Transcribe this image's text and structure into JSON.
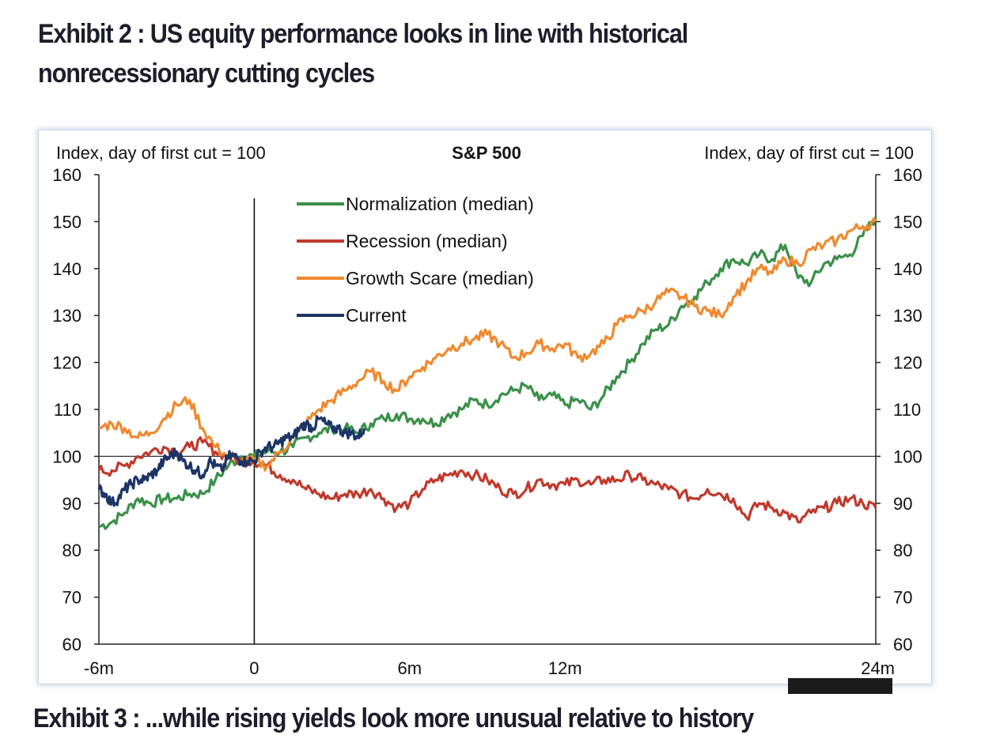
{
  "headings": {
    "exhibit2_line1": "Exhibit 2 : US equity performance looks in line with historical",
    "exhibit2_line2": "nonrecessionary cutting cycles",
    "exhibit3": "Exhibit 3 : ...while rising yields look more unusual relative to history"
  },
  "chart_data": {
    "type": "line",
    "title": "S&P 500",
    "ylabel_left": "Index, day of first cut = 100",
    "ylabel_right": "Index, day of first cut = 100",
    "xlabel": "",
    "x_unit": "months relative to first cut",
    "xlim": [
      -6,
      24
    ],
    "ylim": [
      60,
      160
    ],
    "x_ticks": [
      {
        "value": -6,
        "label": "-6m"
      },
      {
        "value": 0,
        "label": "0"
      },
      {
        "value": 6,
        "label": "6m"
      },
      {
        "value": 12,
        "label": "12m"
      },
      {
        "value": 24,
        "label": "24m"
      }
    ],
    "y_ticks": [
      60,
      70,
      80,
      90,
      100,
      110,
      120,
      130,
      140,
      150,
      160
    ],
    "reference_lines": {
      "horizontal_y": 100,
      "vertical_x": 0,
      "vertical_top_y": 155
    },
    "grid": false,
    "legend_position": "top-left inside plot",
    "series": [
      {
        "name": "Normalization (median)",
        "color": "#3a9048",
        "x": [
          -6,
          -5.5,
          -5,
          -4.5,
          -4,
          -3.5,
          -3,
          -2.5,
          -2,
          -1.5,
          -1,
          -0.5,
          0,
          0.5,
          1,
          1.5,
          2,
          2.5,
          3,
          3.5,
          4,
          4.5,
          5,
          5.5,
          6,
          6.5,
          7,
          7.5,
          8,
          8.5,
          9,
          9.5,
          10,
          10.5,
          11,
          11.5,
          12,
          12.5,
          13,
          13.5,
          14,
          14.5,
          15,
          15.5,
          16,
          16.5,
          17,
          17.5,
          18,
          18.5,
          19,
          19.5,
          20,
          20.5,
          21,
          21.5,
          22,
          22.5,
          23,
          23.5,
          24
        ],
        "y": [
          85,
          86,
          88,
          91,
          90,
          91,
          91,
          92,
          92,
          95,
          98,
          100,
          100,
          101,
          101,
          102,
          104,
          105,
          106,
          106,
          105,
          107,
          108,
          109,
          108,
          108,
          107,
          109,
          110,
          112,
          111,
          113,
          114,
          115,
          112,
          113,
          111,
          112,
          110,
          113,
          117,
          120,
          124,
          127,
          128,
          132,
          134,
          137,
          140,
          142,
          141,
          143,
          142,
          145,
          138,
          137,
          141,
          142,
          143,
          147,
          151
        ]
      },
      {
        "name": "Recession (median)",
        "color": "#c0392b",
        "x": [
          -6,
          -5.5,
          -5,
          -4.5,
          -4,
          -3.5,
          -3,
          -2.5,
          -2,
          -1.5,
          -1,
          -0.5,
          0,
          0.5,
          1,
          1.5,
          2,
          2.5,
          3,
          3.5,
          4,
          4.5,
          5,
          5.5,
          6,
          6.5,
          7,
          7.5,
          8,
          8.5,
          9,
          9.5,
          10,
          10.5,
          11,
          11.5,
          12,
          12.5,
          13,
          13.5,
          14,
          14.5,
          15,
          15.5,
          16,
          16.5,
          17,
          17.5,
          18,
          18.5,
          19,
          19.5,
          20,
          20.5,
          21,
          21.5,
          22,
          22.5,
          23,
          23.5,
          24
        ],
        "y": [
          97,
          97,
          98,
          100,
          101,
          102,
          101,
          102,
          103,
          101,
          100,
          99,
          99,
          98,
          96,
          95,
          93,
          92,
          91,
          92,
          92,
          93,
          91,
          89,
          90,
          93,
          95,
          96,
          97,
          96,
          95,
          93,
          92,
          93,
          95,
          94,
          94,
          95,
          94,
          95,
          95,
          96,
          95,
          94,
          93,
          92,
          91,
          93,
          92,
          91,
          87,
          90,
          89,
          88,
          86,
          88,
          89,
          90,
          91,
          90,
          89
        ]
      },
      {
        "name": "Growth Scare (median)",
        "color": "#f0892e",
        "x": [
          -6,
          -5.5,
          -5,
          -4.5,
          -4,
          -3.5,
          -3,
          -2.5,
          -2,
          -1.5,
          -1,
          -0.5,
          0,
          0.5,
          1,
          1.5,
          2,
          2.5,
          3,
          3.5,
          4,
          4.5,
          5,
          5.5,
          6,
          6.5,
          7,
          7.5,
          8,
          8.5,
          9,
          9.5,
          10,
          10.5,
          11,
          11.5,
          12,
          12.5,
          13,
          13.5,
          14,
          14.5,
          15,
          15.5,
          16,
          16.5,
          17,
          17.5,
          18,
          18.5,
          19,
          19.5,
          20,
          20.5,
          21,
          21.5,
          22,
          22.5,
          23,
          23.5,
          24
        ],
        "y": [
          106,
          107,
          106,
          104,
          105,
          108,
          111,
          112,
          106,
          102,
          100,
          99,
          99,
          98,
          101,
          104,
          107,
          110,
          112,
          114,
          116,
          118,
          116,
          114,
          117,
          119,
          121,
          123,
          124,
          125,
          126,
          124,
          121,
          122,
          124,
          123,
          124,
          121,
          122,
          124,
          128,
          130,
          131,
          133,
          135,
          134,
          132,
          131,
          130,
          134,
          137,
          140,
          139,
          142,
          141,
          144,
          145,
          146,
          148,
          149,
          150
        ]
      },
      {
        "name": "Current",
        "color": "#1c3466",
        "x": [
          -6,
          -5.75,
          -5.5,
          -5.25,
          -5,
          -4.75,
          -4.5,
          -4.25,
          -4,
          -3.75,
          -3.5,
          -3.25,
          -3,
          -2.75,
          -2.5,
          -2.25,
          -2,
          -1.75,
          -1.5,
          -1.25,
          -1,
          -0.75,
          -0.5,
          -0.25,
          0,
          0.25,
          0.5,
          0.75,
          1,
          1.25,
          1.5,
          1.75,
          2,
          2.25,
          2.5,
          2.75,
          3,
          3.25,
          3.5,
          3.75,
          4,
          4.25
        ],
        "y": [
          93,
          92,
          90,
          91,
          93,
          94,
          95,
          95,
          96,
          97,
          99,
          100,
          101,
          99,
          98,
          97,
          96,
          99,
          98,
          97,
          100,
          100,
          99,
          99,
          99,
          101,
          102,
          102,
          103,
          104,
          104,
          106,
          107,
          106,
          108,
          107,
          106,
          106,
          105,
          105,
          104,
          106
        ]
      }
    ]
  }
}
